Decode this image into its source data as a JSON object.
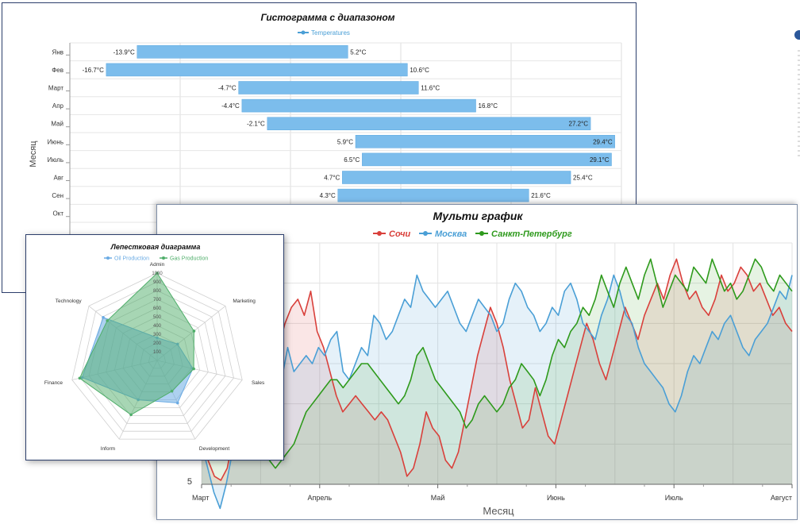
{
  "colors": {
    "bar": "#7cbdec",
    "bar_stroke": "#5aa7e0",
    "sochi": "#d9403b",
    "moscow": "#4a9fd6",
    "spb": "#2e9a1c",
    "oil": "#6aabe4",
    "gas": "#4fae6a",
    "side_icon": "#2b579a"
  },
  "chart_data": [
    {
      "type": "bar",
      "subtype": "range-horizontal",
      "title": "Гистограмма с диапазоном",
      "legend": [
        "Temperatures"
      ],
      "legend_position": "top-center",
      "ylabel": "Месяц",
      "xlim": [
        -20,
        30
      ],
      "grid": true,
      "categories": [
        "Янв",
        "Фев",
        "Март",
        "Апр",
        "Май",
        "Июнь",
        "Июль",
        "Авг",
        "Сен",
        "Окт"
      ],
      "series": [
        {
          "name": "Temperatures",
          "low": [
            -13.9,
            -16.7,
            -4.7,
            -4.4,
            -2.1,
            5.9,
            6.5,
            4.7,
            4.3,
            null
          ],
          "high": [
            5.2,
            10.6,
            11.6,
            16.8,
            27.2,
            29.4,
            29.1,
            25.4,
            21.6,
            null
          ],
          "low_labels": [
            "-13.9°C",
            "-16.7°C",
            "-4.7°C",
            "-4.4°C",
            "-2.1°C",
            "5.9°C",
            "6.5°C",
            "4.7°C",
            "4.3°C",
            ""
          ],
          "high_labels": [
            "5.2°C",
            "10.6°C",
            "11.6°C",
            "16.8°C",
            "27.2°C",
            "29.4°C",
            "29.1°C",
            "25.4°C",
            "21.6°C",
            ""
          ]
        }
      ]
    },
    {
      "type": "area",
      "title": "Мульти график",
      "legend_position": "top-center",
      "xlabel": "Месяц",
      "x_ticks": [
        "Март",
        "Апрель",
        "Май",
        "Июнь",
        "Июль",
        "Август"
      ],
      "y_visible_tick": "5",
      "ylim": [
        5,
        35
      ],
      "grid": true,
      "series": [
        {
          "name": "Сочи",
          "values": [
            12,
            8,
            6,
            5.5,
            7,
            11,
            15,
            18,
            20,
            21,
            19,
            17,
            22,
            25,
            27,
            28,
            26,
            29,
            24,
            22,
            19,
            16,
            14,
            15,
            16,
            15,
            14,
            13,
            14,
            13,
            11,
            9,
            6,
            7,
            10,
            14,
            12,
            11,
            8,
            7,
            9,
            13,
            17,
            21,
            24,
            27,
            25,
            22,
            18,
            15,
            12,
            13,
            17,
            14,
            11,
            10,
            13,
            16,
            19,
            22,
            25,
            23,
            20,
            18,
            21,
            24,
            27,
            25,
            23,
            26,
            28,
            30,
            28,
            31,
            33,
            30,
            28,
            29,
            27,
            26,
            28,
            31,
            29,
            30,
            32,
            31,
            29,
            30,
            28,
            26,
            27,
            25,
            24
          ]
        },
        {
          "name": "Москва",
          "values": [
            10,
            7,
            4,
            2,
            5,
            9,
            13,
            14,
            12,
            10,
            14,
            19,
            20,
            18,
            22,
            19,
            20,
            21,
            20,
            22,
            21,
            23,
            24,
            19,
            18,
            20,
            22,
            21,
            26,
            25,
            23,
            24,
            26,
            28,
            27,
            31,
            29,
            28,
            27,
            28,
            29,
            27,
            25,
            24,
            26,
            28,
            27,
            26,
            24,
            25,
            28,
            30,
            29,
            27,
            26,
            24,
            25,
            27,
            26,
            29,
            30,
            28,
            25,
            24,
            23,
            26,
            28,
            31,
            29,
            26,
            25,
            22,
            20,
            19,
            18,
            17,
            15,
            14,
            16,
            19,
            21,
            20,
            22,
            24,
            23,
            25,
            26,
            24,
            22,
            21,
            23,
            24,
            25,
            27,
            29,
            28,
            31
          ]
        },
        {
          "name": "Санкт-Петербург",
          "values": [
            8,
            9,
            10,
            11,
            10,
            9,
            10,
            12,
            13,
            11,
            10,
            8,
            7,
            8,
            9,
            10,
            12,
            14,
            15,
            16,
            17,
            18,
            18,
            17,
            18,
            19,
            20,
            20,
            19,
            18,
            17,
            16,
            15,
            16,
            18,
            21,
            22,
            20,
            18,
            17,
            16,
            15,
            14,
            12,
            13,
            15,
            16,
            15,
            14,
            15,
            17,
            18,
            20,
            19,
            18,
            16,
            18,
            21,
            23,
            22,
            24,
            25,
            27,
            26,
            28,
            31,
            29,
            27,
            30,
            32,
            30,
            28,
            31,
            33,
            30,
            27,
            29,
            31,
            30,
            29,
            32,
            31,
            30,
            33,
            31,
            29,
            30,
            28,
            29,
            31,
            33,
            32,
            30,
            29,
            31,
            30,
            29
          ]
        }
      ]
    },
    {
      "type": "radar",
      "title": "Лепестковая диаграмма",
      "legend_position": "top-center",
      "axes": [
        "Admin",
        "Marketing",
        "Sales",
        "Development",
        "Inform",
        "Finance",
        "Technology"
      ],
      "r_ticks": [
        "100",
        "200",
        "300",
        "400",
        "500",
        "600",
        "700",
        "800",
        "900",
        "1000"
      ],
      "rlim": [
        0,
        1000
      ],
      "series": [
        {
          "name": "Oil Production",
          "values": [
            260,
            300,
            420,
            540,
            500,
            880,
            790
          ]
        },
        {
          "name": "Gas Production",
          "values": [
            1000,
            540,
            430,
            390,
            690,
            910,
            730
          ]
        }
      ]
    }
  ]
}
